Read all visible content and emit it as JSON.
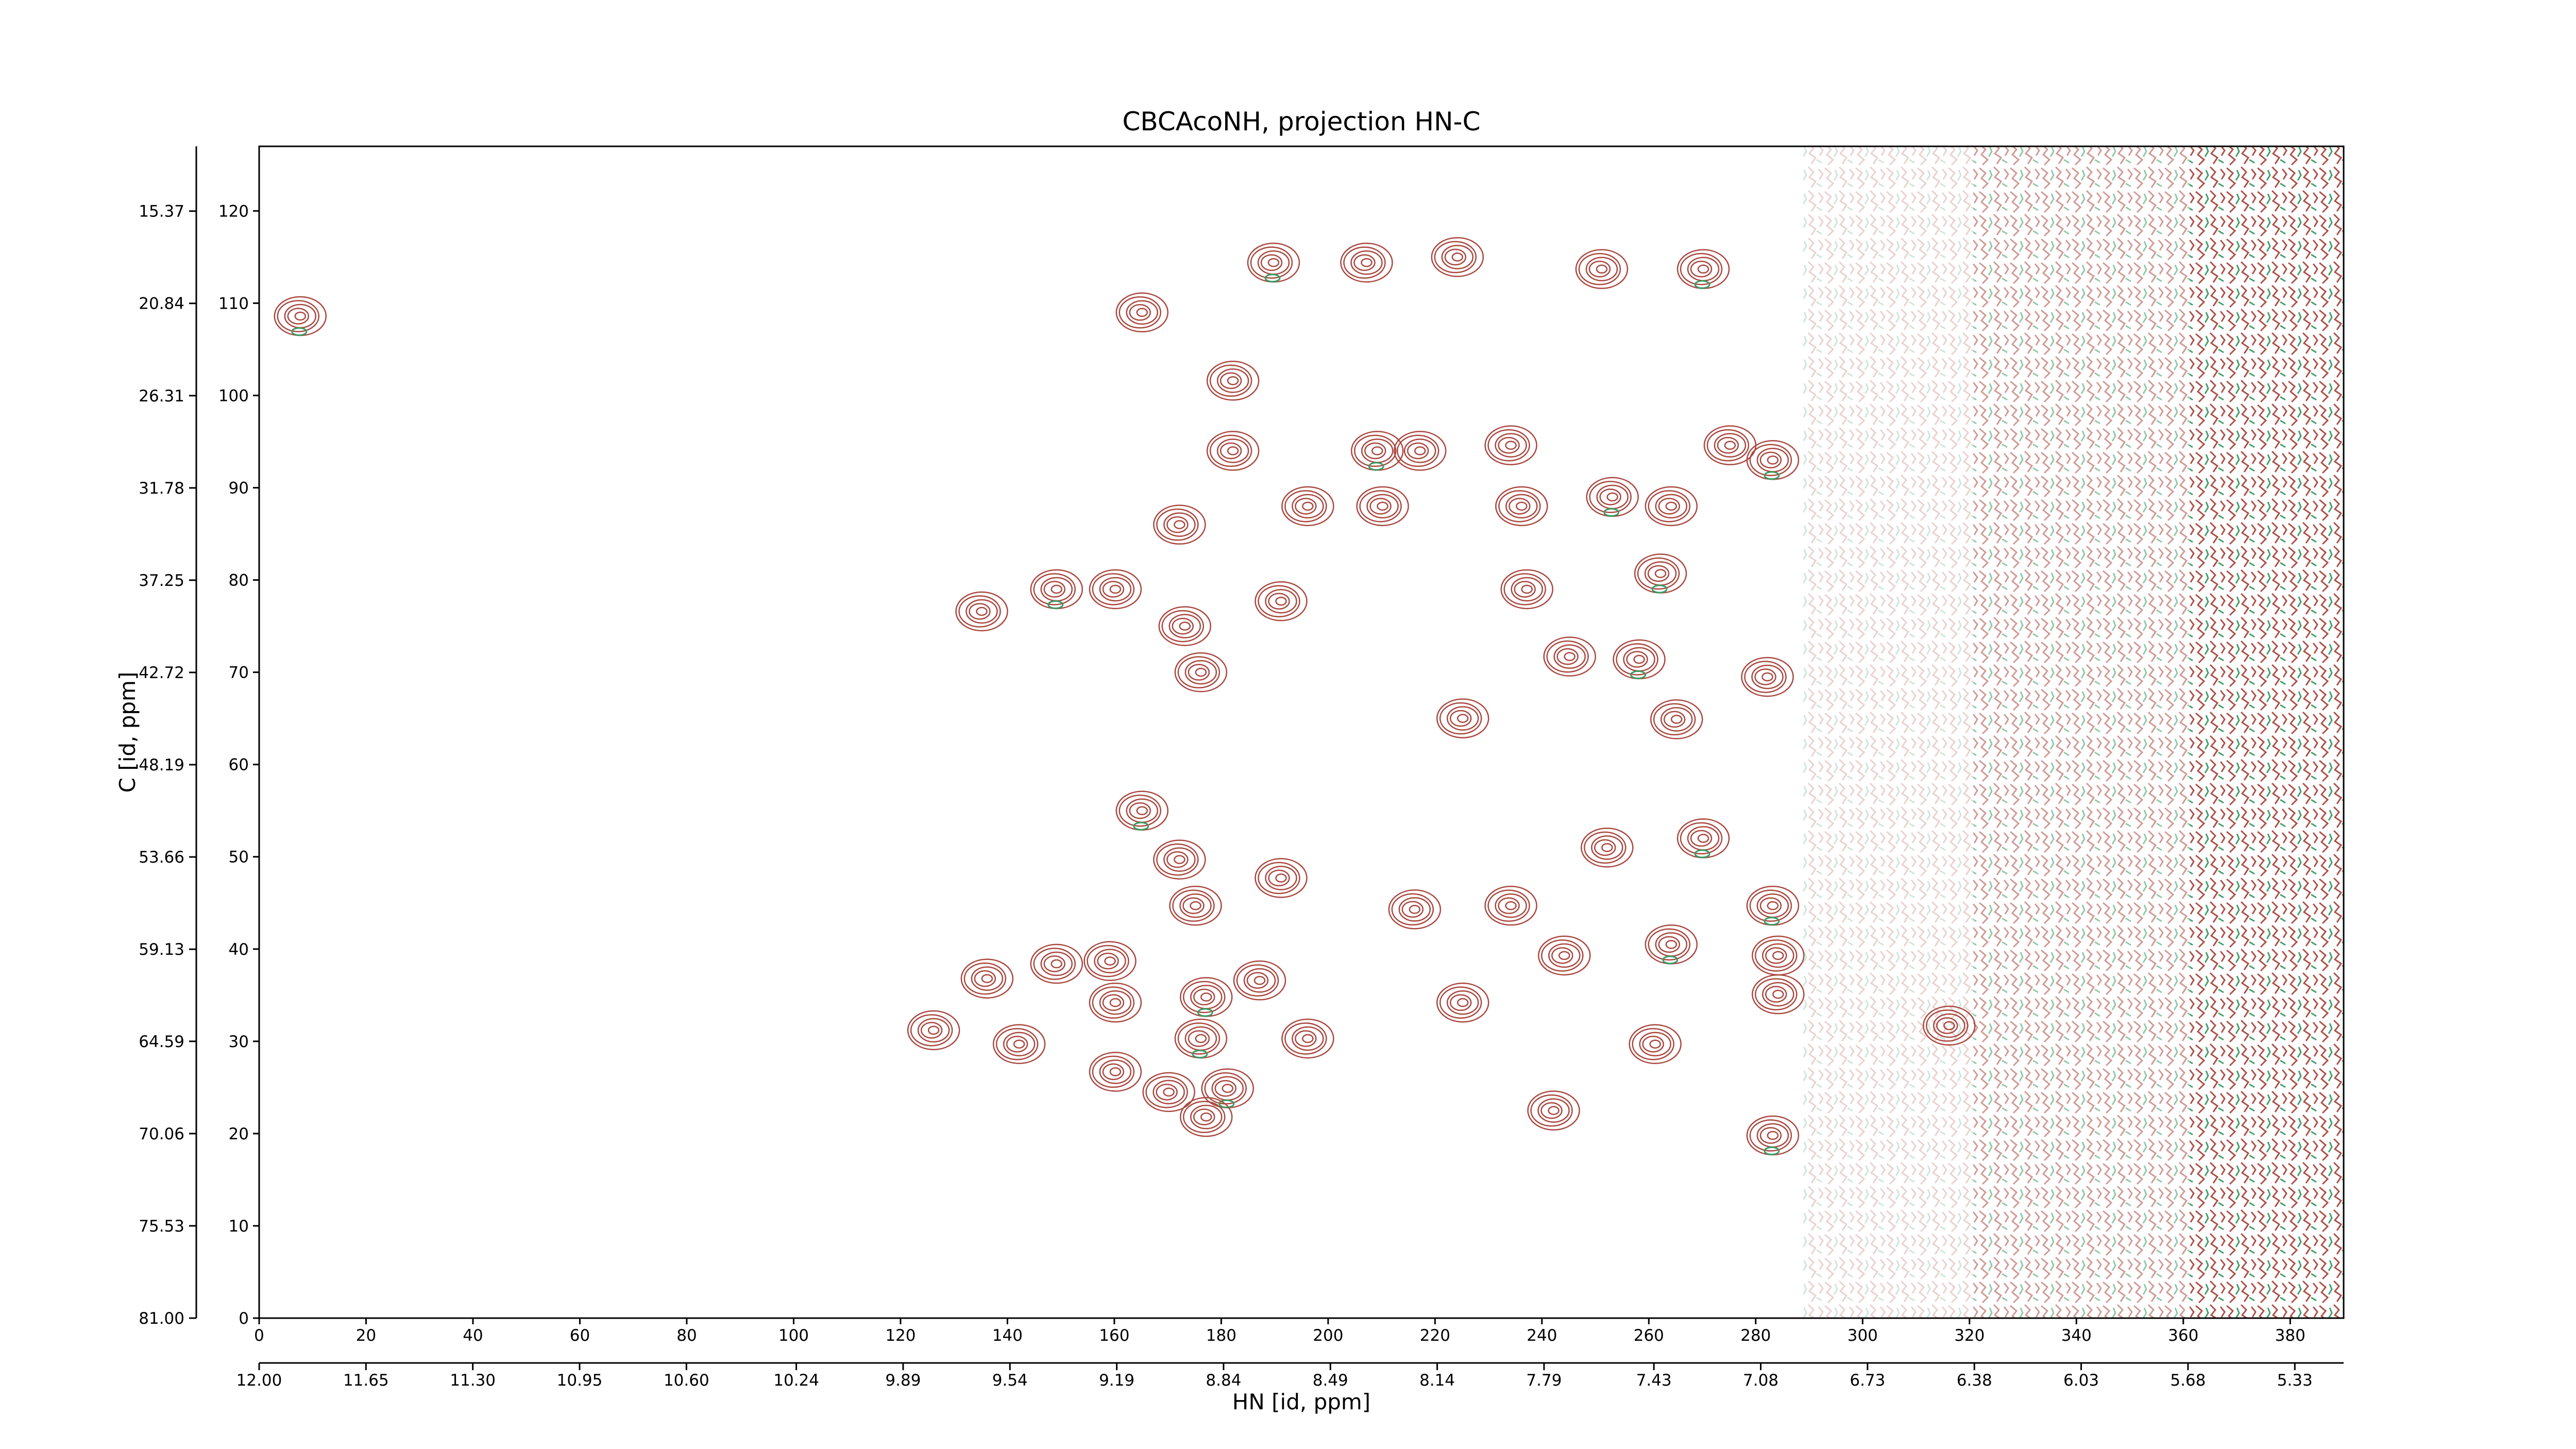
{
  "chart_data": {
    "type": "contour",
    "title": "CBCAcoNH, projection HN-C",
    "xlabel": "HN [id, ppm]",
    "ylabel": "C [id, ppm]",
    "color": "#a9473f",
    "xlim": [
      0,
      390
    ],
    "ylim": [
      0,
      127
    ],
    "xticks": [
      0,
      20,
      40,
      60,
      80,
      100,
      120,
      140,
      160,
      180,
      200,
      220,
      240,
      260,
      280,
      300,
      320,
      340,
      360,
      380
    ],
    "yticks": [
      0,
      10,
      20,
      30,
      40,
      50,
      60,
      70,
      80,
      90,
      100,
      110,
      120
    ],
    "x2lim": [
      12.0,
      5.17
    ],
    "x2ticks": [
      {
        "value": 12.0,
        "label": "12.00"
      },
      {
        "value": 11.65,
        "label": "11.65"
      },
      {
        "value": 11.3,
        "label": "11.30"
      },
      {
        "value": 10.95,
        "label": "10.95"
      },
      {
        "value": 10.6,
        "label": "10.60"
      },
      {
        "value": 10.24,
        "label": "10.24"
      },
      {
        "value": 9.89,
        "label": "9.89"
      },
      {
        "value": 9.54,
        "label": "9.54"
      },
      {
        "value": 9.19,
        "label": "9.19"
      },
      {
        "value": 8.84,
        "label": "8.84"
      },
      {
        "value": 8.49,
        "label": "8.49"
      },
      {
        "value": 8.14,
        "label": "8.14"
      },
      {
        "value": 7.79,
        "label": "7.79"
      },
      {
        "value": 7.43,
        "label": "7.43"
      },
      {
        "value": 7.08,
        "label": "7.08"
      },
      {
        "value": 6.73,
        "label": "6.73"
      },
      {
        "value": 6.38,
        "label": "6.38"
      },
      {
        "value": 6.03,
        "label": "6.03"
      },
      {
        "value": 5.68,
        "label": "5.68"
      },
      {
        "value": 5.33,
        "label": "5.33"
      }
    ],
    "y2lim": [
      81.0,
      11.53
    ],
    "y2ticks": [
      {
        "value": 81.0,
        "label": "81.00"
      },
      {
        "value": 75.53,
        "label": "75.53"
      },
      {
        "value": 70.06,
        "label": "70.06"
      },
      {
        "value": 64.59,
        "label": "64.59"
      },
      {
        "value": 59.13,
        "label": "59.13"
      },
      {
        "value": 53.66,
        "label": "53.66"
      },
      {
        "value": 48.19,
        "label": "48.19"
      },
      {
        "value": 42.72,
        "label": "42.72"
      },
      {
        "value": 37.25,
        "label": "37.25"
      },
      {
        "value": 31.78,
        "label": "31.78"
      },
      {
        "value": 26.31,
        "label": "26.31"
      },
      {
        "value": 20.84,
        "label": "20.84"
      },
      {
        "value": 15.37,
        "label": "15.37"
      }
    ],
    "x": [
      189.6,
      207,
      224,
      251,
      270,
      165,
      182,
      182,
      209,
      217,
      234,
      275,
      283,
      196,
      210,
      236,
      253,
      264,
      172,
      135,
      149,
      160,
      191,
      237,
      262,
      173,
      176,
      245,
      258,
      282,
      225,
      265,
      165,
      172,
      191,
      252,
      270,
      175,
      216,
      234,
      283,
      136,
      149,
      159,
      177,
      160,
      187,
      244,
      264,
      284,
      284,
      196,
      176,
      126,
      142,
      160,
      181,
      170,
      177,
      242,
      283,
      261,
      316,
      225,
      7.5
    ],
    "values": [
      114.4,
      114.4,
      115,
      113.7,
      113.7,
      109,
      101.6,
      94,
      94,
      94,
      94.6,
      94.6,
      93,
      88,
      88,
      88,
      89,
      88,
      86,
      76.6,
      79,
      79,
      77.7,
      79,
      80.7,
      75,
      70,
      71.7,
      71.4,
      69.5,
      65,
      64.9,
      55,
      49.7,
      47.7,
      51,
      52,
      44.7,
      44.3,
      44.7,
      44.7,
      36.8,
      38.4,
      38.7,
      34.8,
      34.2,
      36.6,
      39.3,
      40.5,
      39.3,
      35.1,
      30.3,
      30.3,
      31.2,
      29.7,
      26.7,
      24.9,
      24.5,
      21.8,
      22.5,
      19.8,
      29.7,
      31.7,
      34.2,
      108.6
    ]
  }
}
